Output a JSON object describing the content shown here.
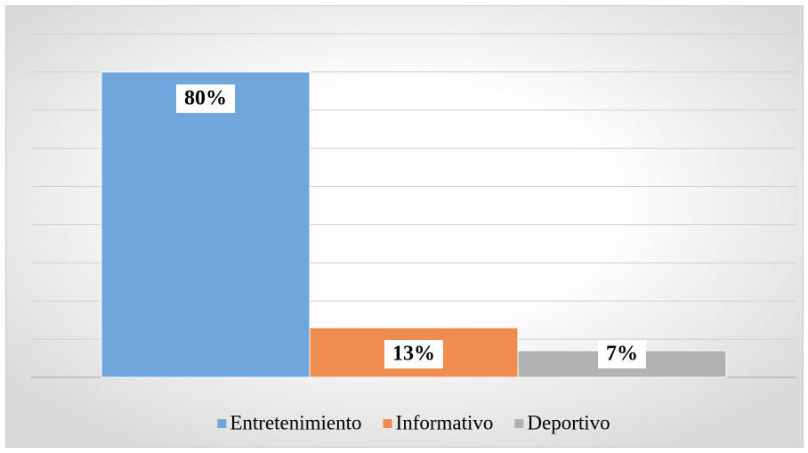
{
  "chart_data": {
    "type": "bar",
    "categories": [
      null
    ],
    "series": [
      {
        "name": "Entretenimiento",
        "color": "#6fa6dc",
        "values": [
          80
        ],
        "value_labels": [
          "80%"
        ]
      },
      {
        "name": "Informativo",
        "color": "#ef8c4f",
        "values": [
          13
        ],
        "value_labels": [
          "13%"
        ]
      },
      {
        "name": "Deportivo",
        "color": "#b2b2b2",
        "values": [
          7
        ],
        "value_labels": [
          "7%"
        ]
      }
    ],
    "ylim": [
      0,
      90
    ],
    "yticks": [
      0,
      10,
      20,
      30,
      40,
      50,
      60,
      70,
      80,
      90
    ],
    "grid": true,
    "legend": "bottom"
  }
}
